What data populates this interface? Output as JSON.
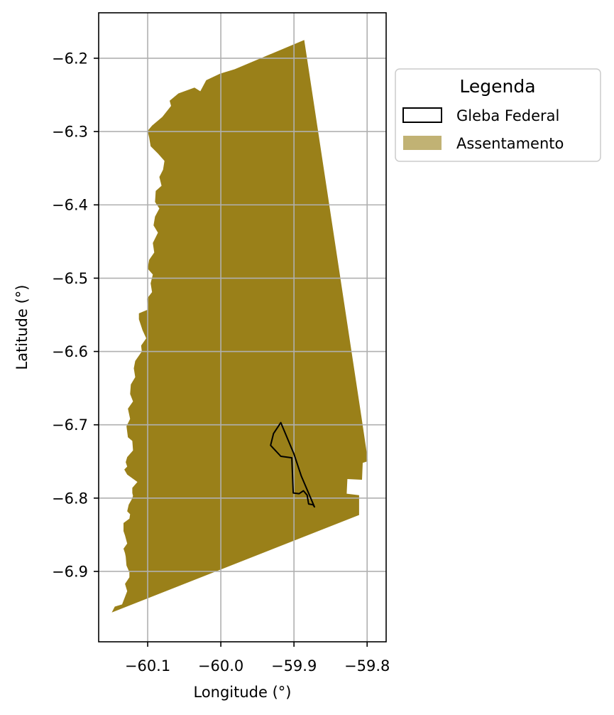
{
  "chart_data": {
    "type": "map",
    "xlabel": "Longitude (°)",
    "ylabel": "Latitude (°)",
    "xlim": [
      -60.167,
      -59.774
    ],
    "ylim": [
      -6.996,
      -6.138
    ],
    "xticks": [
      -60.1,
      -60.0,
      -59.9,
      -59.8
    ],
    "yticks": [
      -6.2,
      -6.3,
      -6.4,
      -6.5,
      -6.6,
      -6.7,
      -6.8,
      -6.9
    ],
    "xtick_labels": [
      "−60.1",
      "−60.0",
      "−59.9",
      "−59.8"
    ],
    "ytick_labels": [
      "−6.2",
      "−6.3",
      "−6.4",
      "−6.5",
      "−6.6",
      "−6.7",
      "−6.8",
      "−6.9"
    ],
    "grid": true,
    "legend": {
      "title": "Legenda",
      "placement": "outside-upper-right",
      "entries": [
        {
          "label": "Gleba Federal",
          "style": "outline",
          "color": "#000000"
        },
        {
          "label": "Assentamento",
          "style": "fill",
          "color": "#c1b274"
        }
      ]
    },
    "layers": [
      {
        "name": "Assentamento",
        "fill": "#9a8019",
        "polygon": [
          [
            -59.886,
            -6.175
          ],
          [
            -59.808,
            -6.688
          ],
          [
            -59.799,
            -6.748
          ],
          [
            -59.8,
            -6.75
          ],
          [
            -59.806,
            -6.752
          ],
          [
            -59.807,
            -6.775
          ],
          [
            -59.827,
            -6.774
          ],
          [
            -59.828,
            -6.794
          ],
          [
            -59.811,
            -6.796
          ],
          [
            -59.811,
            -6.823
          ],
          [
            -60.149,
            -6.956
          ],
          [
            -60.145,
            -6.948
          ],
          [
            -60.135,
            -6.945
          ],
          [
            -60.128,
            -6.927
          ],
          [
            -60.131,
            -6.917
          ],
          [
            -60.125,
            -6.908
          ],
          [
            -60.125,
            -6.901
          ],
          [
            -60.129,
            -6.892
          ],
          [
            -60.13,
            -6.88
          ],
          [
            -60.131,
            -6.875
          ],
          [
            -60.133,
            -6.869
          ],
          [
            -60.128,
            -6.862
          ],
          [
            -60.131,
            -6.851
          ],
          [
            -60.133,
            -6.845
          ],
          [
            -60.133,
            -6.834
          ],
          [
            -60.125,
            -6.828
          ],
          [
            -60.124,
            -6.822
          ],
          [
            -60.128,
            -6.818
          ],
          [
            -60.126,
            -6.809
          ],
          [
            -60.122,
            -6.802
          ],
          [
            -60.12,
            -6.797
          ],
          [
            -60.121,
            -6.793
          ],
          [
            -60.121,
            -6.786
          ],
          [
            -60.114,
            -6.778
          ],
          [
            -60.128,
            -6.768
          ],
          [
            -60.132,
            -6.761
          ],
          [
            -60.128,
            -6.757
          ],
          [
            -60.13,
            -6.751
          ],
          [
            -60.128,
            -6.744
          ],
          [
            -60.12,
            -6.735
          ],
          [
            -60.121,
            -6.722
          ],
          [
            -60.127,
            -6.717
          ],
          [
            -60.129,
            -6.702
          ],
          [
            -60.124,
            -6.692
          ],
          [
            -60.127,
            -6.678
          ],
          [
            -60.12,
            -6.668
          ],
          [
            -60.124,
            -6.658
          ],
          [
            -60.123,
            -6.645
          ],
          [
            -60.117,
            -6.635
          ],
          [
            -60.119,
            -6.623
          ],
          [
            -60.117,
            -6.613
          ],
          [
            -60.108,
            -6.6
          ],
          [
            -60.109,
            -6.592
          ],
          [
            -60.102,
            -6.582
          ],
          [
            -60.107,
            -6.571
          ],
          [
            -60.112,
            -6.556
          ],
          [
            -60.112,
            -6.548
          ],
          [
            -60.1,
            -6.543
          ],
          [
            -60.101,
            -6.528
          ],
          [
            -60.094,
            -6.519
          ],
          [
            -60.096,
            -6.507
          ],
          [
            -60.093,
            -6.495
          ],
          [
            -60.1,
            -6.487
          ],
          [
            -60.098,
            -6.475
          ],
          [
            -60.091,
            -6.465
          ],
          [
            -60.093,
            -6.452
          ],
          [
            -60.086,
            -6.438
          ],
          [
            -60.092,
            -6.428
          ],
          [
            -60.09,
            -6.416
          ],
          [
            -60.084,
            -6.405
          ],
          [
            -60.09,
            -6.396
          ],
          [
            -60.089,
            -6.381
          ],
          [
            -60.081,
            -6.374
          ],
          [
            -60.084,
            -6.362
          ],
          [
            -60.079,
            -6.352
          ],
          [
            -60.077,
            -6.34
          ],
          [
            -60.086,
            -6.33
          ],
          [
            -60.096,
            -6.32
          ],
          [
            -60.098,
            -6.308
          ],
          [
            -60.1,
            -6.299
          ],
          [
            -60.094,
            -6.292
          ],
          [
            -60.08,
            -6.28
          ],
          [
            -60.068,
            -6.265
          ],
          [
            -60.07,
            -6.258
          ],
          [
            -60.058,
            -6.248
          ],
          [
            -60.036,
            -6.24
          ],
          [
            -60.028,
            -6.245
          ],
          [
            -60.02,
            -6.23
          ],
          [
            -60.001,
            -6.221
          ],
          [
            -59.981,
            -6.215
          ]
        ]
      },
      {
        "name": "Gleba Federal",
        "stroke": "#000000",
        "polygon": [
          [
            -59.918,
            -6.697
          ],
          [
            -59.928,
            -6.712
          ],
          [
            -59.932,
            -6.728
          ],
          [
            -59.918,
            -6.743
          ],
          [
            -59.903,
            -6.745
          ],
          [
            -59.901,
            -6.793
          ],
          [
            -59.893,
            -6.794
          ],
          [
            -59.887,
            -6.79
          ],
          [
            -59.882,
            -6.796
          ],
          [
            -59.88,
            -6.808
          ],
          [
            -59.874,
            -6.809
          ],
          [
            -59.872,
            -6.812
          ],
          [
            -59.89,
            -6.77
          ],
          [
            -59.9,
            -6.74
          ]
        ]
      }
    ]
  }
}
